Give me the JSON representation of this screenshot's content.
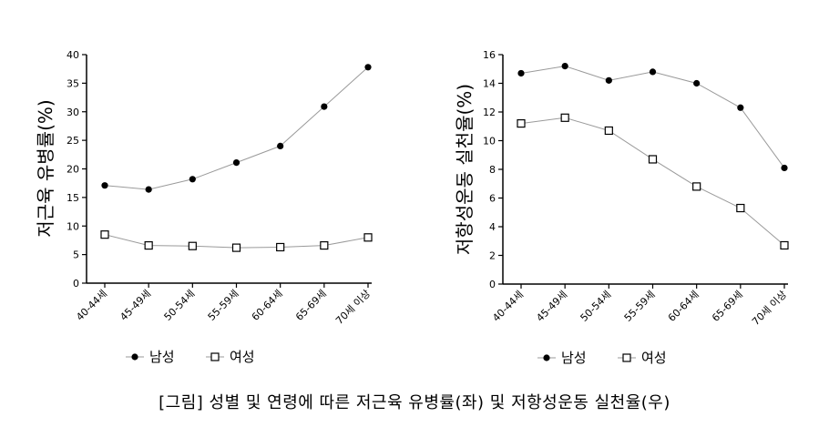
{
  "caption": "[그림] 성별 및 연령에 따른 저근육 유병률(좌) 및 저항성운동 실천율(우)",
  "colors": {
    "male": "#000000",
    "female": "#000000",
    "line": "#9a9a9a",
    "axis": "#000000"
  },
  "chart_data": [
    {
      "type": "line",
      "title": "",
      "ylabel": "저근육 유병률(%)",
      "xlabel": "",
      "ylim": [
        0,
        40
      ],
      "yticks": [
        0,
        5,
        10,
        15,
        20,
        25,
        30,
        35,
        40
      ],
      "grid": false,
      "legend": "bottom-left",
      "categories": [
        "40-44세",
        "45-49세",
        "50-54세",
        "55-59세",
        "60-64세",
        "65-69세",
        "70세 이상"
      ],
      "series": [
        {
          "name": "남성",
          "marker": "filled-circle",
          "values": [
            17.1,
            16.4,
            18.2,
            21.1,
            24.0,
            30.9,
            37.8
          ]
        },
        {
          "name": "여성",
          "marker": "open-square",
          "values": [
            8.5,
            6.6,
            6.5,
            6.2,
            6.3,
            6.6,
            8.0
          ]
        }
      ]
    },
    {
      "type": "line",
      "title": "",
      "ylabel": "저항성운동 실천율(%)",
      "xlabel": "",
      "ylim": [
        0,
        16
      ],
      "yticks": [
        0,
        2,
        4,
        6,
        8,
        10,
        12,
        14,
        16
      ],
      "grid": false,
      "legend": "bottom-left",
      "categories": [
        "40-44세",
        "45-49세",
        "50-54세",
        "55-59세",
        "60-64세",
        "65-69세",
        "70세 이상"
      ],
      "series": [
        {
          "name": "남성",
          "marker": "filled-circle",
          "values": [
            14.7,
            15.2,
            14.2,
            14.8,
            14.0,
            12.3,
            8.1
          ]
        },
        {
          "name": "여성",
          "marker": "open-square",
          "values": [
            11.2,
            11.6,
            10.7,
            8.7,
            6.8,
            5.3,
            2.7
          ]
        }
      ]
    }
  ]
}
